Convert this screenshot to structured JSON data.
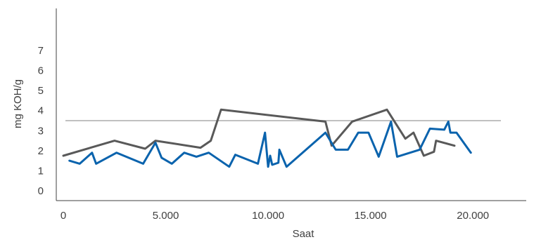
{
  "chart_data": {
    "type": "line",
    "xlabel": "Saat",
    "ylabel": "mg KOH/g",
    "xlim": [
      0,
      22500
    ],
    "ylim": [
      0,
      7
    ],
    "x_ticks": [
      {
        "value": 0,
        "label": "0"
      },
      {
        "value": 5000,
        "label": "5.000"
      },
      {
        "value": 10000,
        "label": "10.000"
      },
      {
        "value": 15000,
        "label": "15.000"
      },
      {
        "value": 20000,
        "label": "20.000"
      }
    ],
    "y_ticks": [
      {
        "value": 0,
        "label": "0"
      },
      {
        "value": 1,
        "label": "1"
      },
      {
        "value": 2,
        "label": "2"
      },
      {
        "value": 3,
        "label": "3"
      },
      {
        "value": 4,
        "label": "4"
      },
      {
        "value": 5,
        "label": "5"
      },
      {
        "value": 6,
        "label": "6"
      },
      {
        "value": 7,
        "label": "7"
      }
    ],
    "grid": false,
    "legend": "none",
    "reference_line": {
      "y": 3.5,
      "color": "#c0c0c0"
    },
    "series": [
      {
        "color": "#595959",
        "points": [
          [
            0,
            1.75
          ],
          [
            2500,
            2.5
          ],
          [
            4000,
            2.1
          ],
          [
            4500,
            2.5
          ],
          [
            6700,
            2.15
          ],
          [
            7200,
            2.5
          ],
          [
            7700,
            4.05
          ],
          [
            12800,
            3.45
          ],
          [
            13100,
            2.25
          ],
          [
            14100,
            3.45
          ],
          [
            15800,
            4.05
          ],
          [
            16700,
            2.6
          ],
          [
            17100,
            2.9
          ],
          [
            17600,
            1.75
          ],
          [
            18100,
            1.95
          ],
          [
            18200,
            2.5
          ],
          [
            19100,
            2.25
          ]
        ]
      },
      {
        "color": "#0a63ad",
        "points": [
          [
            300,
            1.5
          ],
          [
            800,
            1.35
          ],
          [
            1400,
            1.9
          ],
          [
            1600,
            1.35
          ],
          [
            2600,
            1.9
          ],
          [
            3900,
            1.35
          ],
          [
            4500,
            2.4
          ],
          [
            4800,
            1.65
          ],
          [
            5300,
            1.35
          ],
          [
            5900,
            1.9
          ],
          [
            6500,
            1.7
          ],
          [
            7100,
            1.9
          ],
          [
            8100,
            1.2
          ],
          [
            8400,
            1.8
          ],
          [
            9500,
            1.35
          ],
          [
            9850,
            2.9
          ],
          [
            10000,
            1.2
          ],
          [
            10100,
            1.75
          ],
          [
            10200,
            1.3
          ],
          [
            10500,
            1.4
          ],
          [
            10550,
            2.05
          ],
          [
            10900,
            1.2
          ],
          [
            12800,
            2.9
          ],
          [
            13300,
            2.05
          ],
          [
            13900,
            2.05
          ],
          [
            14400,
            2.9
          ],
          [
            14900,
            2.9
          ],
          [
            15400,
            1.7
          ],
          [
            16000,
            3.45
          ],
          [
            16300,
            1.7
          ],
          [
            17400,
            2.05
          ],
          [
            17900,
            3.1
          ],
          [
            18600,
            3.05
          ],
          [
            18800,
            3.45
          ],
          [
            18900,
            2.9
          ],
          [
            19200,
            2.9
          ],
          [
            19900,
            1.9
          ]
        ]
      }
    ]
  }
}
